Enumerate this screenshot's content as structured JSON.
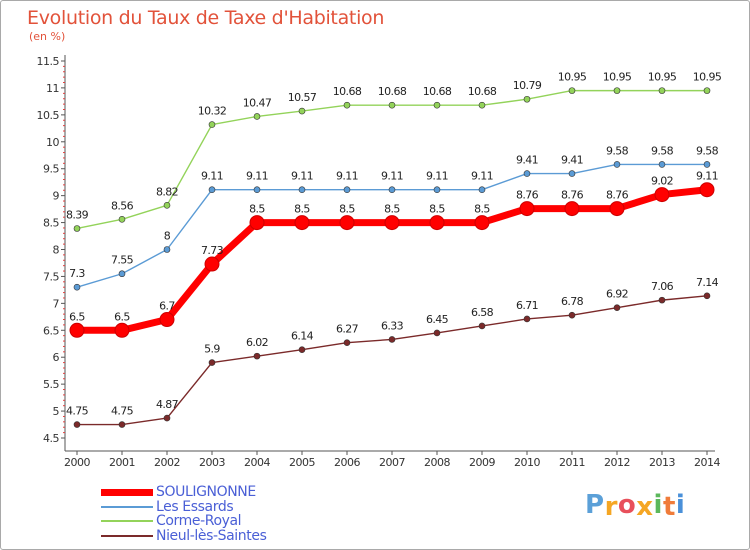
{
  "header": {
    "title": "Evolution du Taux de Taxe d'Habitation",
    "subtitle": "(en %)"
  },
  "brand": {
    "name": "Proxiti",
    "letters": [
      "P",
      "r",
      "o",
      "x",
      "i",
      "t",
      "i"
    ],
    "colors": [
      "#5ba0d8",
      "#f5a623",
      "#e8505b",
      "#f5a623",
      "#5cb85c",
      "#f07c3a",
      "#4a90d9"
    ]
  },
  "chart_data": {
    "type": "line",
    "title": "Evolution du Taux de Taxe d'Habitation",
    "subtitle": "(en %)",
    "x": [
      "2000",
      "2001",
      "2002",
      "2003",
      "2004",
      "2005",
      "2006",
      "2007",
      "2008",
      "2009",
      "2010",
      "2011",
      "2012",
      "2013",
      "2014"
    ],
    "ylim": [
      4.5,
      11.5
    ],
    "yticks": [
      "4.5",
      "5",
      "5.5",
      "6",
      "6.5",
      "7",
      "7.5",
      "8",
      "8.5",
      "9",
      "9.5",
      "10",
      "10.5",
      "11",
      "11.5"
    ],
    "grid": false,
    "legend_position": "bottom-left",
    "series": [
      {
        "name": "SOULIGNONNE",
        "color": "#ff0000",
        "emphasis": true,
        "values": [
          6.5,
          6.5,
          6.7,
          7.73,
          8.5,
          8.5,
          8.5,
          8.5,
          8.5,
          8.5,
          8.76,
          8.76,
          8.76,
          9.02,
          9.11
        ],
        "labels": [
          "6.5",
          "6.5",
          "6.7",
          "7.73",
          "8.5",
          "8.5",
          "8.5",
          "8.5",
          "8.5",
          "8.5",
          "8.76",
          "8.76",
          "8.76",
          "9.02",
          "9.11"
        ]
      },
      {
        "name": "Les Essards",
        "color": "#5b9bd5",
        "emphasis": false,
        "values": [
          7.3,
          7.55,
          8,
          9.11,
          9.11,
          9.11,
          9.11,
          9.11,
          9.11,
          9.11,
          9.41,
          9.41,
          9.58,
          9.58,
          9.58
        ],
        "labels": [
          "7.3",
          "7.55",
          "8",
          "9.11",
          "9.11",
          "9.11",
          "9.11",
          "9.11",
          "9.11",
          "9.11",
          "9.41",
          "9.41",
          "9.58",
          "9.58",
          "9.58"
        ]
      },
      {
        "name": "Corme-Royal",
        "color": "#93d35a",
        "emphasis": false,
        "values": [
          8.39,
          8.56,
          8.82,
          10.32,
          10.47,
          10.57,
          10.68,
          10.68,
          10.68,
          10.68,
          10.79,
          10.95,
          10.95,
          10.95,
          10.95
        ],
        "labels": [
          "8.39",
          "8.56",
          "8.82",
          "10.32",
          "10.47",
          "10.57",
          "10.68",
          "10.68",
          "10.68",
          "10.68",
          "10.79",
          "10.95",
          "10.95",
          "10.95",
          "10.95"
        ]
      },
      {
        "name": "Nieul-lès-Saintes",
        "color": "#7b2a2a",
        "emphasis": false,
        "values": [
          4.75,
          4.75,
          4.87,
          5.9,
          6.02,
          6.14,
          6.27,
          6.33,
          6.45,
          6.58,
          6.71,
          6.78,
          6.92,
          7.06,
          7.14
        ],
        "labels": [
          "4.75",
          "4.75",
          "4.87",
          "5.9",
          "6.02",
          "6.14",
          "6.27",
          "6.33",
          "6.45",
          "6.58",
          "6.71",
          "6.78",
          "6.92",
          "7.06",
          "7.14"
        ]
      }
    ]
  }
}
